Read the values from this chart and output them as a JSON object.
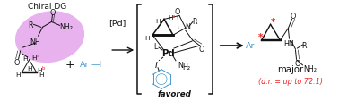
{
  "bg_color": "#ffffff",
  "title_text": "Chiral DG",
  "red_color": "#ee2222",
  "blue_color": "#4499cc",
  "black_color": "#111111",
  "purple_fill": "#cc55dd",
  "purple_alpha": 0.45,
  "major_text": "major",
  "dr_text": "(d.r. = up to 72:1)",
  "favored_text": "favored",
  "fig_width": 3.78,
  "fig_height": 1.14,
  "dpi": 100
}
